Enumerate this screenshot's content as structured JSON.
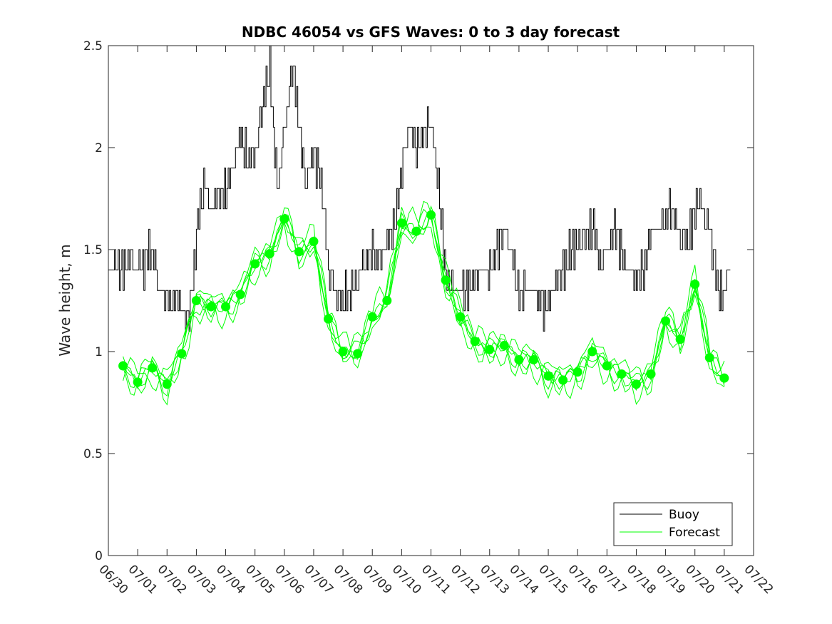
{
  "chart_data": {
    "type": "line",
    "title": "NDBC 46054 vs GFS Waves: 0 to 3 day forecast",
    "xlabel": "",
    "ylabel": "Wave height, m",
    "xlim": [
      0,
      22
    ],
    "ylim": [
      0,
      2.5
    ],
    "x_tick_labels": [
      "06/30",
      "07/01",
      "07/02",
      "07/03",
      "07/04",
      "07/05",
      "07/06",
      "07/07",
      "07/08",
      "07/09",
      "07/10",
      "07/11",
      "07/12",
      "07/13",
      "07/14",
      "07/15",
      "07/16",
      "07/17",
      "07/18",
      "07/19",
      "07/20",
      "07/21",
      "07/22"
    ],
    "y_tick_labels": [
      "0",
      "0.5",
      "1",
      "1.5",
      "2",
      "2.5"
    ],
    "y_ticks": [
      0,
      0.5,
      1,
      1.5,
      2,
      2.5
    ],
    "grid": false,
    "legend_position": "bottom-right",
    "colors": {
      "buoy": "#000000",
      "forecast": "#00ff00",
      "axis": "#262626"
    },
    "series": [
      {
        "name": "Buoy",
        "style": "line",
        "x": [
          0.0,
          0.25,
          0.5,
          0.75,
          1.0,
          1.25,
          1.5,
          1.75,
          2.0,
          2.25,
          2.5,
          2.75,
          3.0,
          3.25,
          3.5,
          3.75,
          4.0,
          4.25,
          4.5,
          4.75,
          5.0,
          5.25,
          5.5,
          5.75,
          6.0,
          6.25,
          6.5,
          6.75,
          7.0,
          7.25,
          7.5,
          7.75,
          8.0,
          8.25,
          8.5,
          8.75,
          9.0,
          9.25,
          9.5,
          9.75,
          10.0,
          10.25,
          10.5,
          10.75,
          11.0,
          11.25,
          11.5,
          11.75,
          12.0,
          12.25,
          12.5,
          12.75,
          13.0,
          13.25,
          13.5,
          13.75,
          14.0,
          14.25,
          14.5,
          14.75,
          15.0,
          15.25,
          15.5,
          15.75,
          16.0,
          16.25,
          16.5,
          16.75,
          17.0,
          17.25,
          17.5,
          17.75,
          18.0,
          18.25,
          18.5,
          18.75,
          19.0,
          19.25,
          19.5,
          19.75,
          20.0,
          20.25,
          20.5,
          20.75,
          21.0,
          21.25
        ],
        "values": [
          1.4,
          1.45,
          1.4,
          1.45,
          1.4,
          1.45,
          1.5,
          1.3,
          1.25,
          1.25,
          1.2,
          1.15,
          1.6,
          1.8,
          1.7,
          1.75,
          1.8,
          1.9,
          2.1,
          1.9,
          2.0,
          2.2,
          2.4,
          1.8,
          2.1,
          2.4,
          2.1,
          1.8,
          2.0,
          1.8,
          1.4,
          1.3,
          1.25,
          1.3,
          1.35,
          1.45,
          1.5,
          1.45,
          1.5,
          1.65,
          1.9,
          2.1,
          2.0,
          2.1,
          2.1,
          1.8,
          1.4,
          1.3,
          1.3,
          1.3,
          1.35,
          1.4,
          1.4,
          1.5,
          1.6,
          1.45,
          1.3,
          1.3,
          1.3,
          1.25,
          1.2,
          1.35,
          1.4,
          1.5,
          1.55,
          1.55,
          1.6,
          1.45,
          1.5,
          1.6,
          1.5,
          1.4,
          1.35,
          1.4,
          1.6,
          1.6,
          1.65,
          1.7,
          1.55,
          1.55,
          1.7,
          1.7,
          1.6,
          1.3,
          1.3,
          1.45
        ]
      },
      {
        "name": "Forecast",
        "style": "lines+markers",
        "x": [
          0.5,
          1.0,
          1.5,
          2.0,
          2.5,
          3.0,
          3.5,
          4.0,
          4.5,
          5.0,
          5.5,
          6.0,
          6.5,
          7.0,
          7.5,
          8.0,
          8.5,
          9.0,
          9.5,
          10.0,
          10.5,
          11.0,
          11.5,
          12.0,
          12.5,
          13.0,
          13.5,
          14.0,
          14.5,
          15.0,
          15.5,
          16.0,
          16.5,
          17.0,
          17.5,
          18.0,
          18.5,
          19.0,
          19.5,
          20.0,
          20.5,
          21.0
        ],
        "values": [
          0.93,
          0.85,
          0.92,
          0.84,
          0.99,
          1.25,
          1.22,
          1.22,
          1.28,
          1.43,
          1.48,
          1.65,
          1.49,
          1.54,
          1.16,
          1.0,
          0.99,
          1.17,
          1.25,
          1.63,
          1.59,
          1.67,
          1.35,
          1.17,
          1.05,
          1.01,
          1.03,
          0.96,
          0.96,
          0.88,
          0.86,
          0.9,
          1.0,
          0.93,
          0.89,
          0.84,
          0.89,
          1.15,
          1.06,
          1.33,
          0.97,
          0.87
        ]
      }
    ]
  }
}
